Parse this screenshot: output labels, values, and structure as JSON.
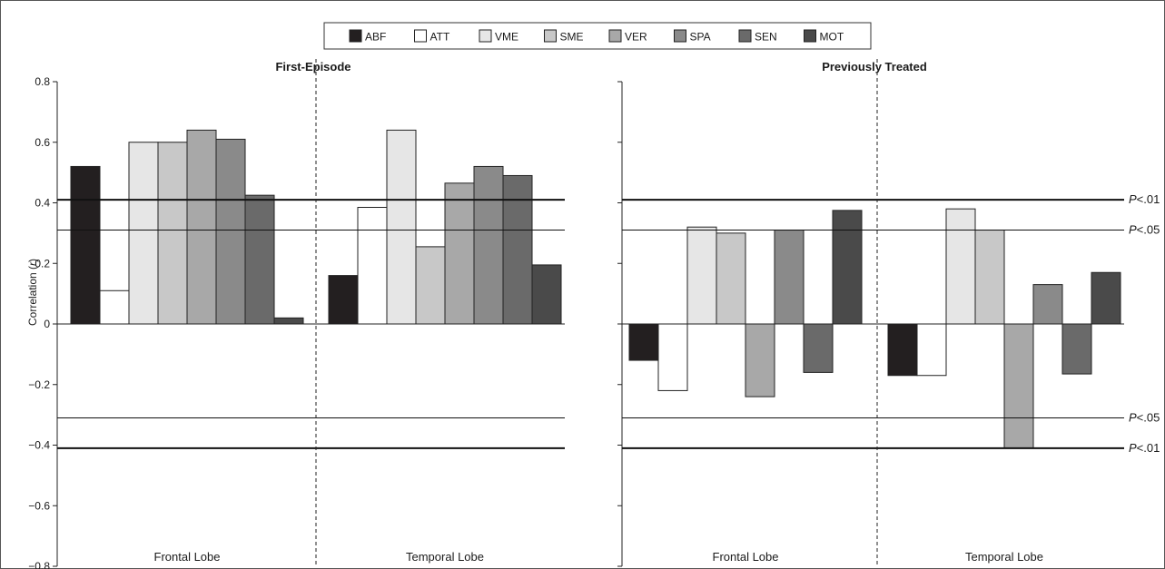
{
  "legend": [
    {
      "code": "ABF",
      "color": "#231f20"
    },
    {
      "code": "ATT",
      "color": "#ffffff"
    },
    {
      "code": "VME",
      "color": "#e6e6e6"
    },
    {
      "code": "SME",
      "color": "#c8c8c8"
    },
    {
      "code": "VER",
      "color": "#a8a8a8"
    },
    {
      "code": "SPA",
      "color": "#8a8a8a"
    },
    {
      "code": "SEN",
      "color": "#6a6a6a"
    },
    {
      "code": "MOT",
      "color": "#4a4a4a"
    }
  ],
  "y_axis_label": "Correlation (r)",
  "y_ticks": [
    "0.8",
    "0.6",
    "0.4",
    "0.2",
    "0",
    "−0.2",
    "−0.4",
    "−0.6",
    "−0.8"
  ],
  "threshold_labels": {
    "p01": "P<.01",
    "p05": "P<.05"
  },
  "chart_data": [
    {
      "type": "bar",
      "title": "First-Episode",
      "categories": [
        "Frontal Lobe",
        "Temporal Lobe"
      ],
      "ylabel": "Correlation (r)",
      "ylim": [
        -0.8,
        0.8
      ],
      "series": [
        {
          "name": "ABF",
          "values": [
            0.52,
            0.16
          ]
        },
        {
          "name": "ATT",
          "values": [
            0.11,
            0.385
          ]
        },
        {
          "name": "VME",
          "values": [
            0.6,
            0.64
          ]
        },
        {
          "name": "SME",
          "values": [
            0.6,
            0.255
          ]
        },
        {
          "name": "VER",
          "values": [
            0.64,
            0.465
          ]
        },
        {
          "name": "SPA",
          "values": [
            0.61,
            0.52
          ]
        },
        {
          "name": "SEN",
          "values": [
            0.425,
            0.49
          ]
        },
        {
          "name": "MOT",
          "values": [
            0.02,
            0.195
          ]
        }
      ],
      "thresholds": [
        0.41,
        0.31,
        -0.31,
        -0.41
      ]
    },
    {
      "type": "bar",
      "title": "Previously Treated",
      "categories": [
        "Frontal Lobe",
        "Temporal Lobe"
      ],
      "ylim": [
        -0.8,
        0.8
      ],
      "series": [
        {
          "name": "ABF",
          "values": [
            -0.12,
            -0.17
          ]
        },
        {
          "name": "ATT",
          "values": [
            -0.22,
            -0.17
          ]
        },
        {
          "name": "VME",
          "values": [
            0.32,
            0.38
          ]
        },
        {
          "name": "SME",
          "values": [
            0.3,
            0.31
          ]
        },
        {
          "name": "VER",
          "values": [
            -0.24,
            -0.41
          ]
        },
        {
          "name": "SPA",
          "values": [
            0.31,
            0.13
          ]
        },
        {
          "name": "SEN",
          "values": [
            -0.16,
            -0.165
          ]
        },
        {
          "name": "MOT",
          "values": [
            0.375,
            0.17
          ]
        }
      ],
      "thresholds": [
        0.41,
        0.31,
        -0.31,
        -0.41
      ]
    }
  ]
}
